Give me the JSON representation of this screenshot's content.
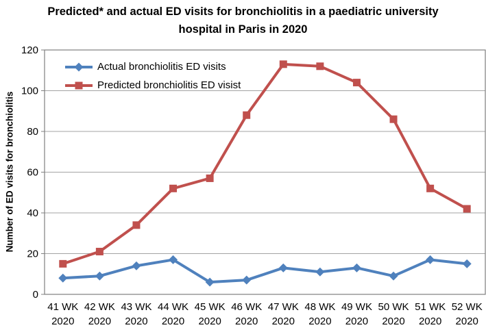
{
  "title_lines": [
    "Predicted* and actual ED visits for bronchiolitis in a paediatric university",
    "hospital in Paris in 2020"
  ],
  "colors": {
    "background": "#FFFFFF",
    "text": "#000000",
    "gridline": "#A3A3A3",
    "border": "#7F7F7F",
    "actual_blue": "#4F81BD",
    "predicted_red": "#C0504D"
  },
  "chart_data": {
    "type": "line",
    "title": "Predicted* and actual ED visits for bronchiolitis in a paediatric university hospital in Paris in 2020",
    "xlabel": "",
    "ylabel": "Number of ED visits for bronchiolitis",
    "ylim": [
      0,
      120
    ],
    "yticks": [
      0,
      20,
      40,
      60,
      80,
      100,
      120
    ],
    "grid": true,
    "legend_position": "top-left-inside",
    "categories": [
      "41 WK 2020",
      "42 WK 2020",
      "43 WK 2020",
      "44 WK 2020",
      "45 WK 2020",
      "46 WK 2020",
      "47 WK 2020",
      "48 WK 2020",
      "49 WK 2020",
      "50 WK 2020",
      "51 WK 2020",
      "52 WK 2020"
    ],
    "series": [
      {
        "name": "Actual bronchiolitis ED visits",
        "marker": "diamond",
        "color": "#4F81BD",
        "values": [
          8,
          9,
          14,
          17,
          6,
          7,
          13,
          11,
          13,
          9,
          17,
          15
        ]
      },
      {
        "name": "Predicted bronchiolitis ED visist",
        "marker": "square",
        "color": "#C0504D",
        "values": [
          15,
          21,
          34,
          52,
          57,
          88,
          113,
          112,
          104,
          86,
          52,
          42
        ]
      }
    ]
  }
}
